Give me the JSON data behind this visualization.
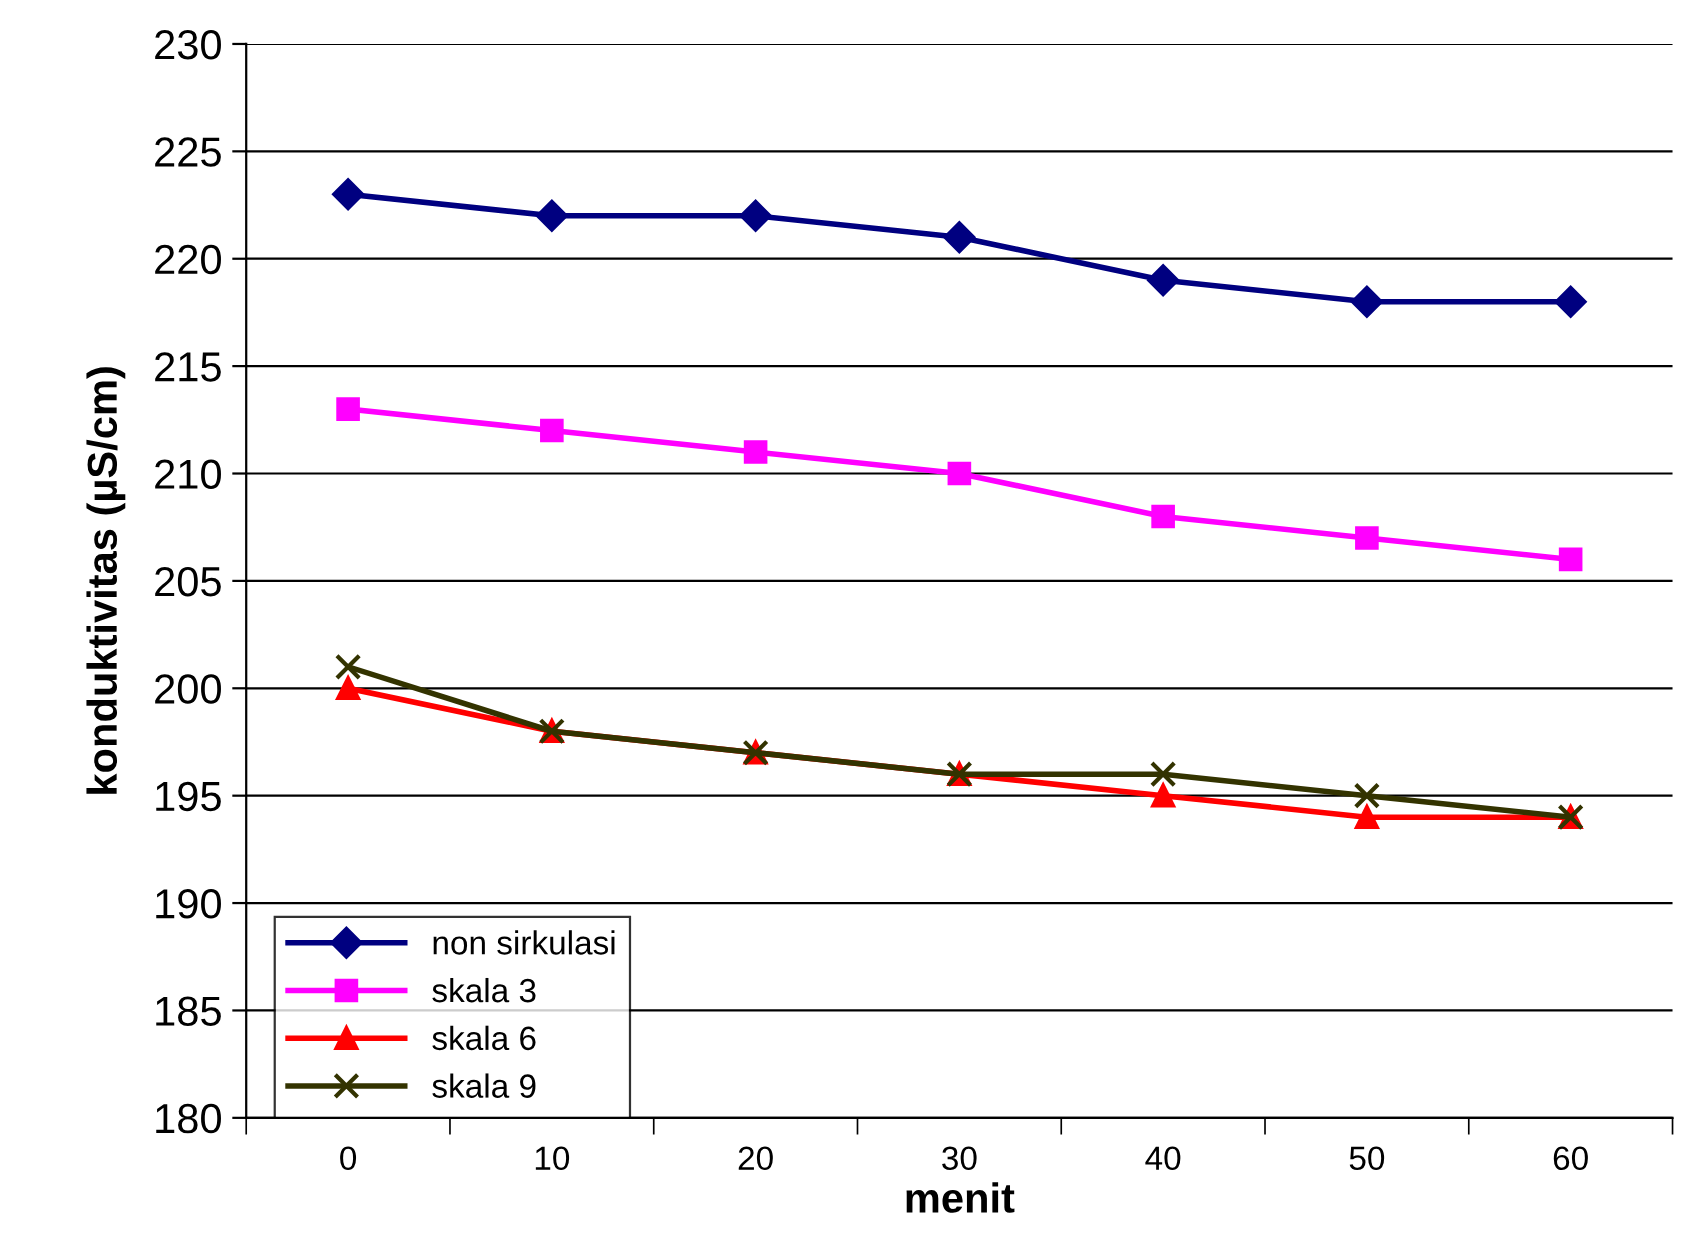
{
  "chart_data": {
    "type": "line",
    "xlabel": "menit",
    "ylabel": "konduktivitas (µS/cm)",
    "categories": [
      "0",
      "10",
      "20",
      "30",
      "40",
      "50",
      "60"
    ],
    "series": [
      {
        "name": "non sirkulasi",
        "color": "#000080",
        "marker": "diamond",
        "values": [
          223,
          222,
          222,
          221,
          219,
          218,
          218
        ]
      },
      {
        "name": "skala 3",
        "color": "#ff00ff",
        "marker": "square",
        "values": [
          213,
          212,
          211,
          210,
          208,
          207,
          206
        ]
      },
      {
        "name": "skala 6",
        "color": "#ff0000",
        "marker": "triangle",
        "values": [
          200,
          198,
          197,
          196,
          195,
          194,
          194
        ]
      },
      {
        "name": "skala 9",
        "color": "#333300",
        "marker": "cross",
        "values": [
          201,
          198,
          197,
          196,
          196,
          195,
          194
        ]
      }
    ],
    "ylim": [
      180,
      230
    ],
    "yticks": [
      180,
      185,
      190,
      195,
      200,
      205,
      210,
      215,
      220,
      225,
      230
    ],
    "grid": "y",
    "legend": "bottom left"
  }
}
